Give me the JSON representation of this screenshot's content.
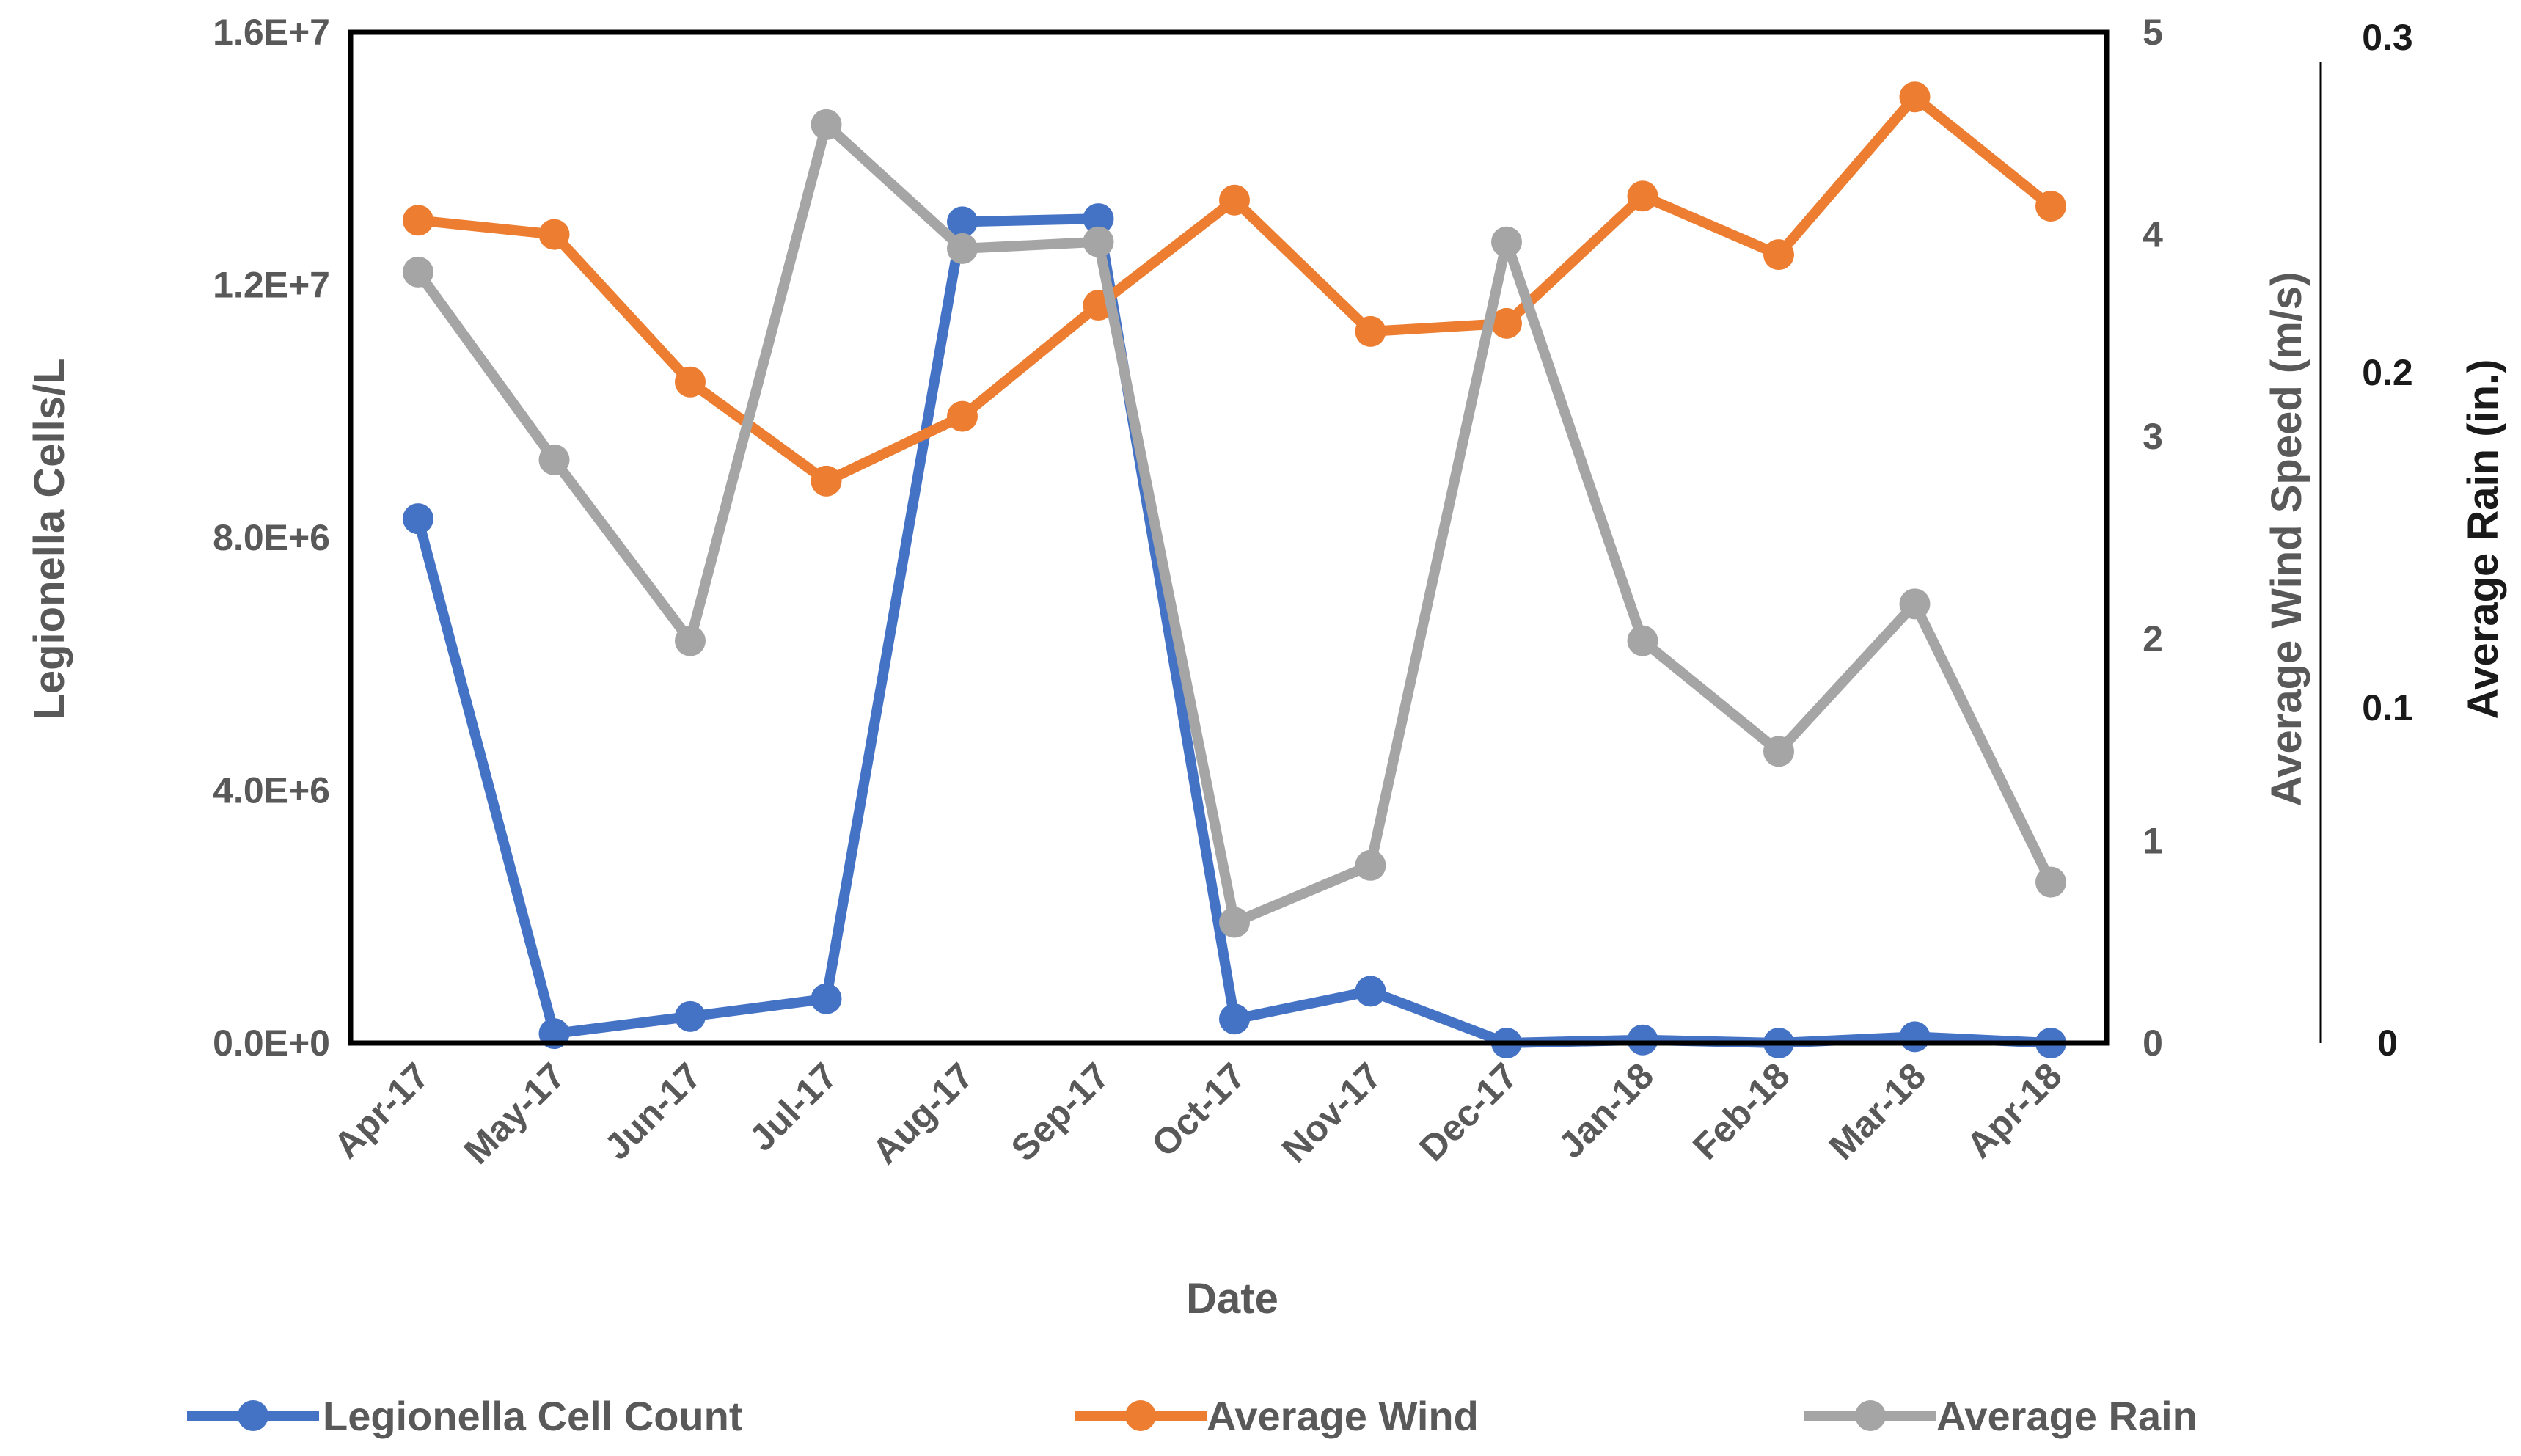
{
  "chart_data": {
    "type": "line",
    "title": "",
    "xlabel": "Date",
    "categories": [
      "Apr-17",
      "May-17",
      "Jun-17",
      "Jul-17",
      "Aug-17",
      "Sep-17",
      "Oct-17",
      "Nov-17",
      "Dec-17",
      "Jan-18",
      "Feb-18",
      "Mar-18",
      "Apr-18"
    ],
    "axes": {
      "left": {
        "label": "Legionella Cells/L",
        "ylim": [
          0,
          16000000
        ],
        "ticks": [
          "0.0E+0",
          "4.0E+6",
          "8.0E+6",
          "1.2E+7",
          "1.6E+7"
        ],
        "tick_values": [
          0,
          4000000,
          8000000,
          12000000,
          16000000
        ]
      },
      "right1": {
        "label": "Average Wind Speed (m/s)",
        "ylim": [
          0,
          5
        ],
        "ticks": [
          "0",
          "1",
          "2",
          "3",
          "4",
          "5"
        ],
        "tick_values": [
          0,
          1,
          2,
          3,
          4,
          5
        ]
      },
      "right2": {
        "label": "Average Rain (in.)",
        "ylim": [
          0,
          0.3
        ],
        "ticks": [
          "0",
          "0.1",
          "0.2",
          "0.3"
        ],
        "tick_values": [
          0,
          0.1,
          0.2,
          0.3
        ]
      }
    },
    "series": [
      {
        "name": "Legionella Cell Count",
        "axis": "left",
        "color": "#4472C4",
        "values": [
          8300000,
          150000,
          420000,
          700000,
          13000000,
          13050000,
          380000,
          820000,
          0,
          50000,
          0,
          100000,
          0
        ]
      },
      {
        "name": "Average Wind",
        "axis": "right1",
        "color": "#ED7D31",
        "values": [
          4.07,
          4.0,
          3.27,
          2.78,
          3.1,
          3.65,
          4.17,
          3.52,
          3.56,
          4.19,
          3.9,
          4.68,
          4.14
        ]
      },
      {
        "name": "Average Rain",
        "axis": "right2",
        "color": "#A5A5A5",
        "values": [
          0.23,
          0.174,
          0.12,
          0.274,
          0.237,
          0.239,
          0.036,
          0.053,
          0.239,
          0.12,
          0.087,
          0.131,
          0.048
        ]
      }
    ],
    "grid": false,
    "legend_position": "bottom"
  }
}
